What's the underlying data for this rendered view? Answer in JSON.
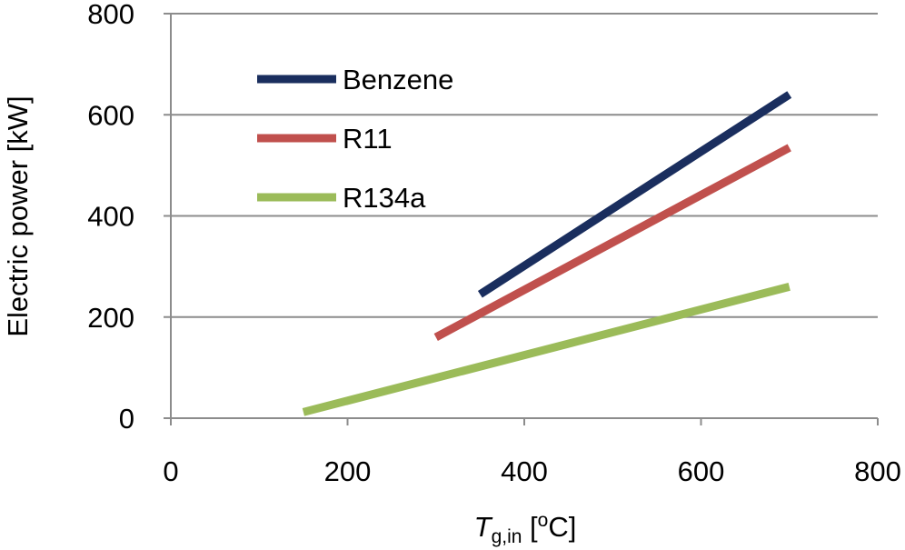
{
  "chart_data": {
    "type": "line",
    "title": "",
    "xlabel": {
      "italic": "T",
      "subscript": "g,in",
      "unit_open": " [",
      "unit_sup": "o",
      "unit_rest": "C]"
    },
    "ylabel": "Electric power [kW]",
    "xlim": [
      0,
      800
    ],
    "ylim": [
      0,
      800
    ],
    "x_ticks": [
      0,
      200,
      400,
      600,
      800
    ],
    "y_ticks": [
      0,
      200,
      400,
      600,
      800
    ],
    "grid": "horizontal",
    "legend_position": "top-left",
    "series": [
      {
        "name": "Benzene",
        "color": "#1a2e5e",
        "x": [
          350,
          700
        ],
        "y": [
          245,
          640
        ]
      },
      {
        "name": "R11",
        "color": "#c0504d",
        "x": [
          300,
          700
        ],
        "y": [
          160,
          535
        ]
      },
      {
        "name": "R134a",
        "color": "#9bbb59",
        "x": [
          150,
          700
        ],
        "y": [
          12,
          260
        ]
      }
    ]
  }
}
